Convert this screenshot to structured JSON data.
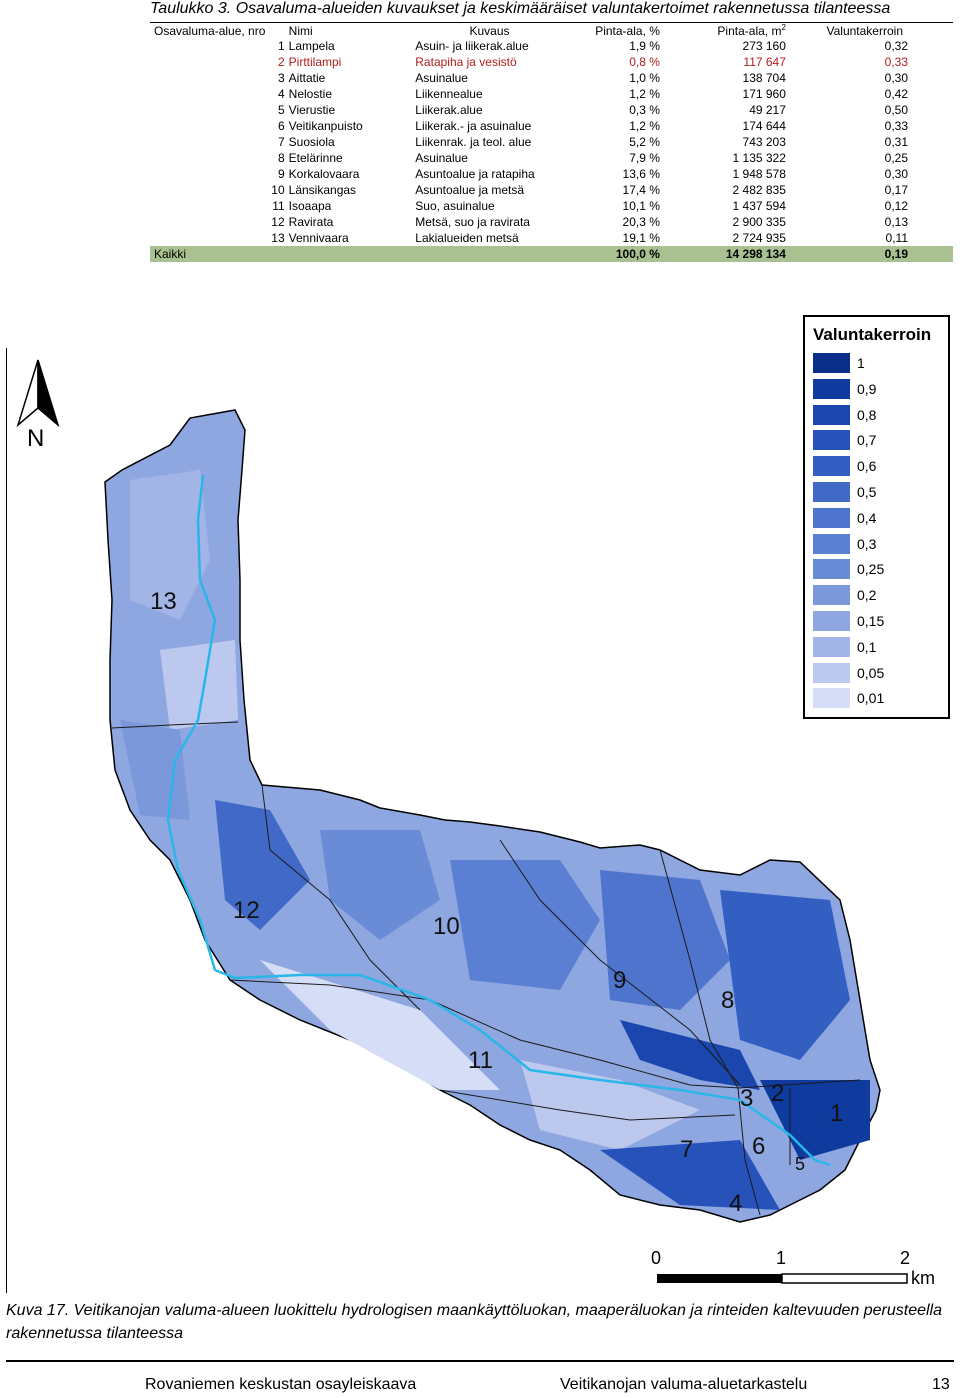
{
  "table": {
    "caption": "Taulukko 3. Osavaluma-alueiden kuvaukset ja keskimääräiset valuntakertoimet rakennetussa tilanteessa",
    "headers": {
      "nro": "Osavaluma-alue, nro",
      "nimi": "Nimi",
      "kuvaus": "Kuvaus",
      "pct": "Pinta-ala, %",
      "m2": "Pinta-ala, m",
      "m2_sup": "2",
      "vk": "Valuntakerroin"
    },
    "rows": [
      {
        "nro": "1",
        "nimi": "Lampela",
        "kuvaus": "Asuin- ja liikerak.alue",
        "pct": "1,9 %",
        "m2": "273 160",
        "vk": "0,32"
      },
      {
        "nro": "2",
        "nimi": "Pirttilampi",
        "kuvaus": "Ratapiha ja vesistö",
        "pct": "0,8 %",
        "m2": "117 647",
        "vk": "0,33"
      },
      {
        "nro": "3",
        "nimi": "Aittatie",
        "kuvaus": "Asuinalue",
        "pct": "1,0 %",
        "m2": "138 704",
        "vk": "0,30"
      },
      {
        "nro": "4",
        "nimi": "Nelostie",
        "kuvaus": "Liikennealue",
        "pct": "1,2 %",
        "m2": "171 960",
        "vk": "0,42"
      },
      {
        "nro": "5",
        "nimi": "Vierustie",
        "kuvaus": "Liikerak.alue",
        "pct": "0,3 %",
        "m2": "49 217",
        "vk": "0,50"
      },
      {
        "nro": "6",
        "nimi": "Veitikanpuisto",
        "kuvaus": "Liikerak.- ja asuinalue",
        "pct": "1,2 %",
        "m2": "174 644",
        "vk": "0,33"
      },
      {
        "nro": "7",
        "nimi": "Suosiola",
        "kuvaus": "Liikenrak. ja teol. alue",
        "pct": "5,2 %",
        "m2": "743 203",
        "vk": "0,31"
      },
      {
        "nro": "8",
        "nimi": "Etelärinne",
        "kuvaus": "Asuinalue",
        "pct": "7,9 %",
        "m2": "1 135 322",
        "vk": "0,25"
      },
      {
        "nro": "9",
        "nimi": "Korkalovaara",
        "kuvaus": "Asuntoalue ja ratapiha",
        "pct": "13,6 %",
        "m2": "1 948 578",
        "vk": "0,30"
      },
      {
        "nro": "10",
        "nimi": "Länsikangas",
        "kuvaus": "Asuntoalue ja metsä",
        "pct": "17,4 %",
        "m2": "2 482 835",
        "vk": "0,17"
      },
      {
        "nro": "11",
        "nimi": "Isoaapa",
        "kuvaus": "Suo, asuinalue",
        "pct": "10,1 %",
        "m2": "1 437 594",
        "vk": "0,12"
      },
      {
        "nro": "12",
        "nimi": "Ravirata",
        "kuvaus": "Metsä, suo ja ravirata",
        "pct": "20,3 %",
        "m2": "2 900 335",
        "vk": "0,13"
      },
      {
        "nro": "13",
        "nimi": "Vennivaara",
        "kuvaus": "Lakialueiden metsä",
        "pct": "19,1 %",
        "m2": "2 724 935",
        "vk": "0,11"
      }
    ],
    "total": {
      "label": "Kaikki",
      "pct": "100,0 %",
      "m2": "14 298 134",
      "vk": "0,19"
    }
  },
  "map": {
    "north_label": "N",
    "legend_title": "Valuntakerroin",
    "legend": [
      {
        "label": "1",
        "color": "#0a2f8a"
      },
      {
        "label": "0,9",
        "color": "#0f3a9e"
      },
      {
        "label": "0,8",
        "color": "#1a46ad"
      },
      {
        "label": "0,7",
        "color": "#2652b9"
      },
      {
        "label": "0,6",
        "color": "#345fc2"
      },
      {
        "label": "0,5",
        "color": "#4169c8"
      },
      {
        "label": "0,4",
        "color": "#4f74cd"
      },
      {
        "label": "0,3",
        "color": "#5b7fd2"
      },
      {
        "label": "0,25",
        "color": "#6a8bd6"
      },
      {
        "label": "0,2",
        "color": "#7b98da"
      },
      {
        "label": "0,15",
        "color": "#8ea7e0"
      },
      {
        "label": "0,1",
        "color": "#a3b5e6"
      },
      {
        "label": "0,05",
        "color": "#bcc8ee"
      },
      {
        "label": "0,01",
        "color": "#d6ddf6"
      }
    ],
    "zone_labels": [
      "13",
      "12",
      "10",
      "11",
      "9",
      "8",
      "7",
      "6",
      "3",
      "2",
      "1",
      "4",
      "5"
    ],
    "stream_color": "#29b6e8",
    "scale": {
      "ticks": [
        "0",
        "1",
        "2"
      ],
      "unit": "km"
    }
  },
  "figure_caption": "Kuva 17. Veitikanojan valuma-alueen luokittelu hydrologisen maankäyttöluokan, maaperäluokan ja rinteiden kaltevuuden perusteella rakennetussa tilanteessa",
  "footer": {
    "left": "Rovaniemen keskustan osayleiskaava",
    "center": "Veitikanojan valuma-aluetarkastelu",
    "page": "13"
  }
}
